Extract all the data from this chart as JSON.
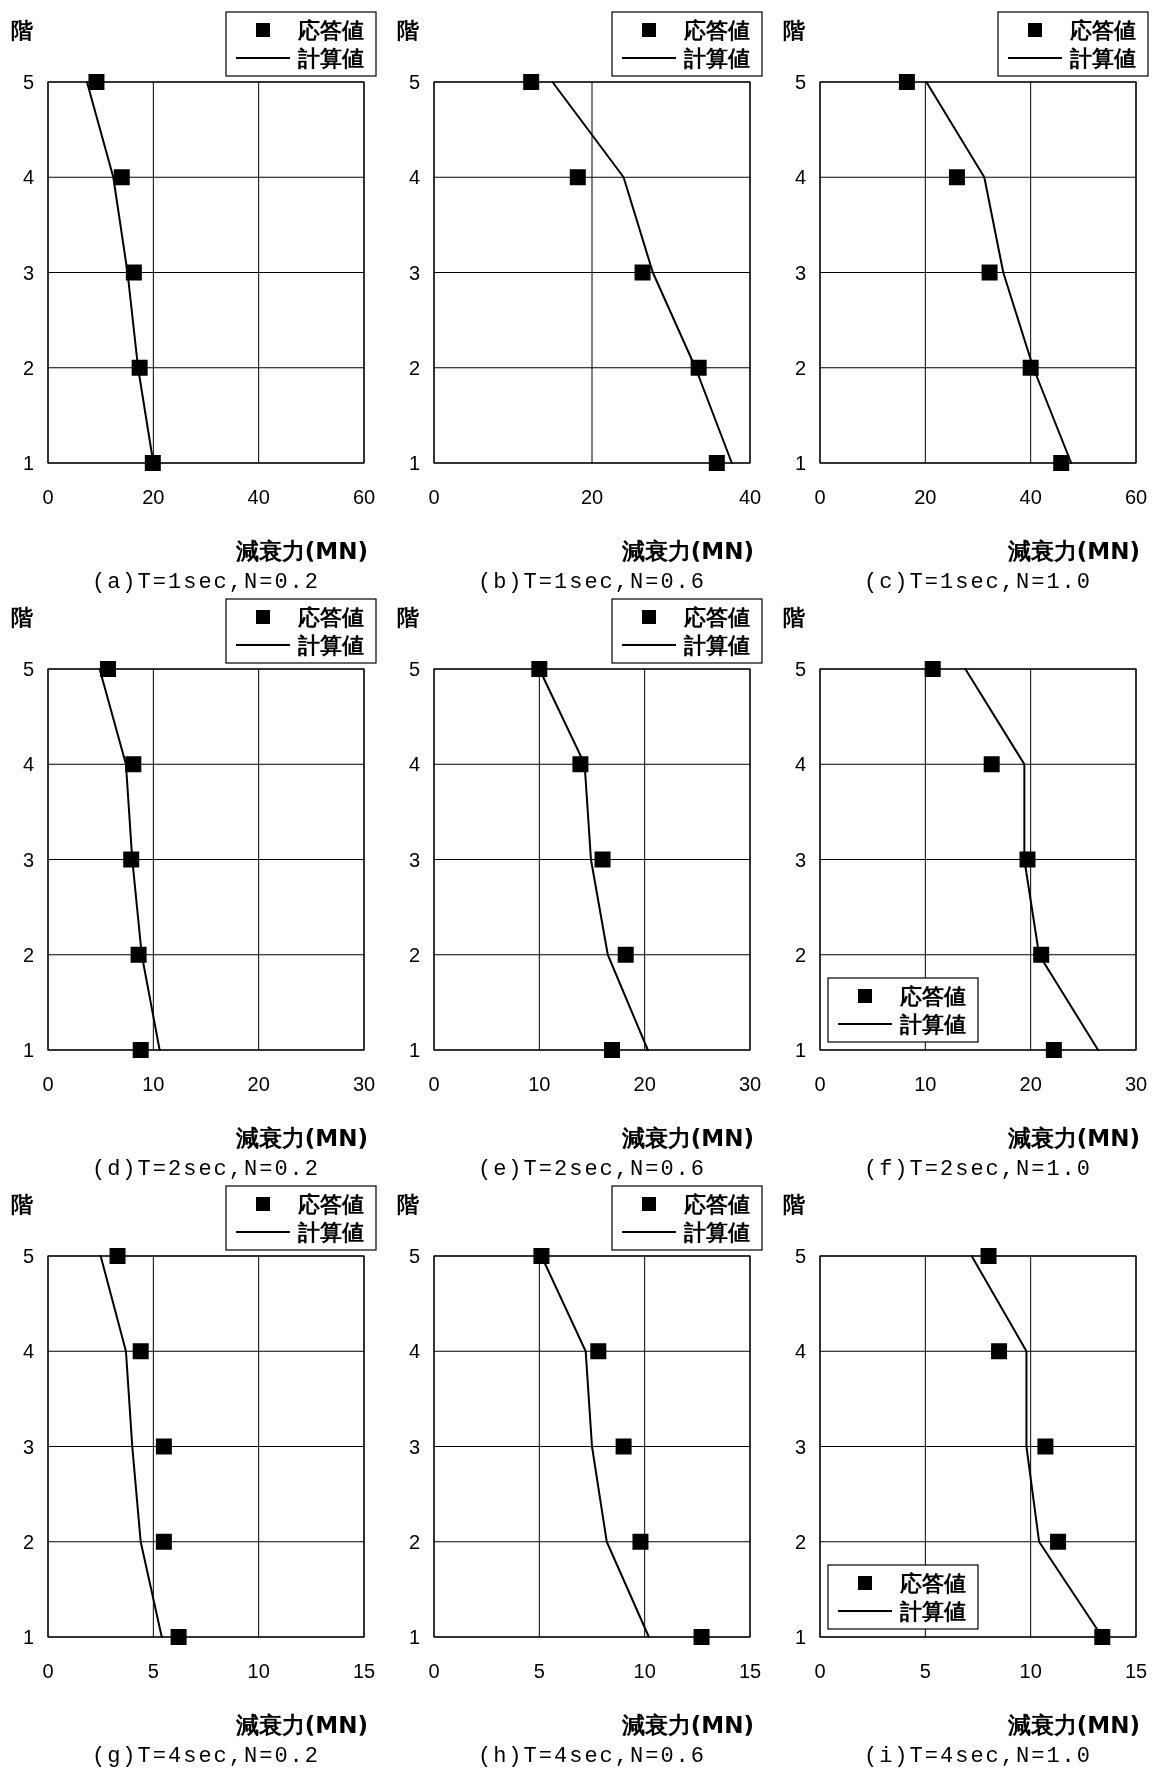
{
  "chart_data": [
    {
      "type": "scatter",
      "title": "(a)T=1sec,N=0.2",
      "xlabel": "減衰力(MN)",
      "ylabel": "階",
      "xlim": [
        0,
        60
      ],
      "xticks": [
        0,
        20,
        40,
        60
      ],
      "ylim": [
        1,
        5
      ],
      "yticks": [
        1,
        2,
        3,
        4,
        5
      ],
      "grid": true,
      "legend": "top right",
      "series": [
        {
          "name": "応答値",
          "type": "scatter",
          "marker": "square",
          "color": "#000000",
          "x": [
            9.2,
            14,
            16.3,
            17.4,
            19.9
          ],
          "values": [
            5,
            4,
            3,
            2,
            1
          ]
        },
        {
          "name": "計算値",
          "type": "line",
          "color": "#000000",
          "x": [
            7.4,
            12.4,
            15.1,
            17.1,
            20
          ],
          "values": [
            5,
            4,
            3,
            2,
            1
          ]
        }
      ]
    },
    {
      "type": "scatter",
      "title": "(b)T=1sec,N=0.6",
      "xlabel": "減衰力(MN)",
      "ylabel": "階",
      "xlim": [
        0,
        40
      ],
      "xticks": [
        0,
        20,
        40
      ],
      "ylim": [
        1,
        5
      ],
      "yticks": [
        1,
        2,
        3,
        4,
        5
      ],
      "grid": true,
      "legend": "top right",
      "series": [
        {
          "name": "応答値",
          "type": "scatter",
          "marker": "square",
          "color": "#000000",
          "x": [
            12.3,
            18.2,
            26.4,
            33.5,
            35.8
          ],
          "values": [
            5,
            4,
            3,
            2,
            1
          ]
        },
        {
          "name": "計算値",
          "type": "line",
          "color": "#000000",
          "x": [
            15,
            24,
            27.7,
            33.1,
            37.7
          ],
          "values": [
            5,
            4,
            3,
            2,
            1
          ]
        }
      ]
    },
    {
      "type": "scatter",
      "title": "(c)T=1sec,N=1.0",
      "xlabel": "減衰力(MN)",
      "ylabel": "階",
      "xlim": [
        0,
        60
      ],
      "xticks": [
        0,
        20,
        40,
        60
      ],
      "ylim": [
        1,
        5
      ],
      "yticks": [
        1,
        2,
        3,
        4,
        5
      ],
      "grid": true,
      "legend": "top right",
      "series": [
        {
          "name": "応答値",
          "type": "scatter",
          "marker": "square",
          "color": "#000000",
          "x": [
            16.5,
            26,
            32.2,
            40,
            45.8
          ],
          "values": [
            5,
            4,
            3,
            2,
            1
          ]
        },
        {
          "name": "計算値",
          "type": "line",
          "color": "#000000",
          "x": [
            20.2,
            31.2,
            34.8,
            40.5,
            47.7
          ],
          "values": [
            5,
            4,
            3,
            2,
            1
          ]
        }
      ]
    },
    {
      "type": "scatter",
      "title": "(d)T=2sec,N=0.2",
      "xlabel": "減衰力(MN)",
      "ylabel": "階",
      "xlim": [
        0,
        30
      ],
      "xticks": [
        0,
        10,
        20,
        30
      ],
      "ylim": [
        1,
        5
      ],
      "yticks": [
        1,
        2,
        3,
        4,
        5
      ],
      "grid": true,
      "legend": "top right",
      "series": [
        {
          "name": "応答値",
          "type": "scatter",
          "marker": "square",
          "color": "#000000",
          "x": [
            5.7,
            8.1,
            7.9,
            8.6,
            8.8
          ],
          "values": [
            5,
            4,
            3,
            2,
            1
          ]
        },
        {
          "name": "計算値",
          "type": "line",
          "color": "#000000",
          "x": [
            4.9,
            7.4,
            8,
            8.9,
            10.6
          ],
          "values": [
            5,
            4,
            3,
            2,
            1
          ]
        }
      ]
    },
    {
      "type": "scatter",
      "title": "(e)T=2sec,N=0.6",
      "xlabel": "減衰力(MN)",
      "ylabel": "階",
      "xlim": [
        0,
        30
      ],
      "xticks": [
        0,
        10,
        20,
        30
      ],
      "ylim": [
        1,
        5
      ],
      "yticks": [
        1,
        2,
        3,
        4,
        5
      ],
      "grid": true,
      "legend": "top right",
      "series": [
        {
          "name": "応答値",
          "type": "scatter",
          "marker": "square",
          "color": "#000000",
          "x": [
            10,
            13.9,
            16,
            18.2,
            16.9
          ],
          "values": [
            5,
            4,
            3,
            2,
            1
          ]
        },
        {
          "name": "計算値",
          "type": "line",
          "color": "#000000",
          "x": [
            10,
            14.3,
            14.9,
            16.5,
            20.3
          ],
          "values": [
            5,
            4,
            3,
            2,
            1
          ]
        }
      ]
    },
    {
      "type": "scatter",
      "title": "(f)T=2sec,N=1.0",
      "xlabel": "減衰力(MN)",
      "ylabel": "階",
      "xlim": [
        0,
        30
      ],
      "xticks": [
        0,
        10,
        20,
        30
      ],
      "ylim": [
        1,
        5
      ],
      "yticks": [
        1,
        2,
        3,
        4,
        5
      ],
      "grid": true,
      "legend": "bottom left",
      "series": [
        {
          "name": "応答値",
          "type": "scatter",
          "marker": "square",
          "color": "#000000",
          "x": [
            10.7,
            16.3,
            19.7,
            21,
            22.2
          ],
          "values": [
            5,
            4,
            3,
            2,
            1
          ]
        },
        {
          "name": "計算値",
          "type": "line",
          "color": "#000000",
          "x": [
            13.8,
            19.4,
            19.4,
            20.8,
            26.4
          ],
          "values": [
            5,
            4,
            3,
            2,
            1
          ]
        }
      ]
    },
    {
      "type": "scatter",
      "title": "(g)T=4sec,N=0.2",
      "xlabel": "減衰力(MN)",
      "ylabel": "階",
      "xlim": [
        0,
        15
      ],
      "xticks": [
        0,
        5,
        10,
        15
      ],
      "ylim": [
        1,
        5
      ],
      "yticks": [
        1,
        2,
        3,
        4,
        5
      ],
      "grid": true,
      "legend": "top right",
      "series": [
        {
          "name": "応答値",
          "type": "scatter",
          "marker": "square",
          "color": "#000000",
          "x": [
            3.3,
            4.4,
            5.5,
            5.5,
            6.2
          ],
          "values": [
            5,
            4,
            3,
            2,
            1
          ]
        },
        {
          "name": "計算値",
          "type": "line",
          "color": "#000000",
          "x": [
            2.5,
            3.7,
            4,
            4.4,
            5.4
          ],
          "values": [
            5,
            4,
            3,
            2,
            1
          ]
        }
      ]
    },
    {
      "type": "scatter",
      "title": "(h)T=4sec,N=0.6",
      "xlabel": "減衰力(MN)",
      "ylabel": "階",
      "xlim": [
        0,
        15
      ],
      "xticks": [
        0,
        5,
        10,
        15
      ],
      "ylim": [
        1,
        5
      ],
      "yticks": [
        1,
        2,
        3,
        4,
        5
      ],
      "grid": true,
      "legend": "top right",
      "series": [
        {
          "name": "応答値",
          "type": "scatter",
          "marker": "square",
          "color": "#000000",
          "x": [
            5.1,
            7.8,
            9,
            9.8,
            12.7
          ],
          "values": [
            5,
            4,
            3,
            2,
            1
          ]
        },
        {
          "name": "計算値",
          "type": "line",
          "color": "#000000",
          "x": [
            5.1,
            7.2,
            7.5,
            8.2,
            10.2
          ],
          "values": [
            5,
            4,
            3,
            2,
            1
          ]
        }
      ]
    },
    {
      "type": "scatter",
      "title": "(i)T=4sec,N=1.0",
      "xlabel": "減衰力(MN)",
      "ylabel": "階",
      "xlim": [
        0,
        15
      ],
      "xticks": [
        0,
        5,
        10,
        15
      ],
      "ylim": [
        1,
        5
      ],
      "yticks": [
        1,
        2,
        3,
        4,
        5
      ],
      "grid": true,
      "legend": "bottom left",
      "series": [
        {
          "name": "応答値",
          "type": "scatter",
          "marker": "square",
          "color": "#000000",
          "x": [
            8,
            8.5,
            10.7,
            11.3,
            13.4
          ],
          "values": [
            5,
            4,
            3,
            2,
            1
          ]
        },
        {
          "name": "計算値",
          "type": "line",
          "color": "#000000",
          "x": [
            7.2,
            9.8,
            9.8,
            10.4,
            13.4
          ],
          "values": [
            5,
            4,
            3,
            2,
            1
          ]
        }
      ]
    }
  ]
}
